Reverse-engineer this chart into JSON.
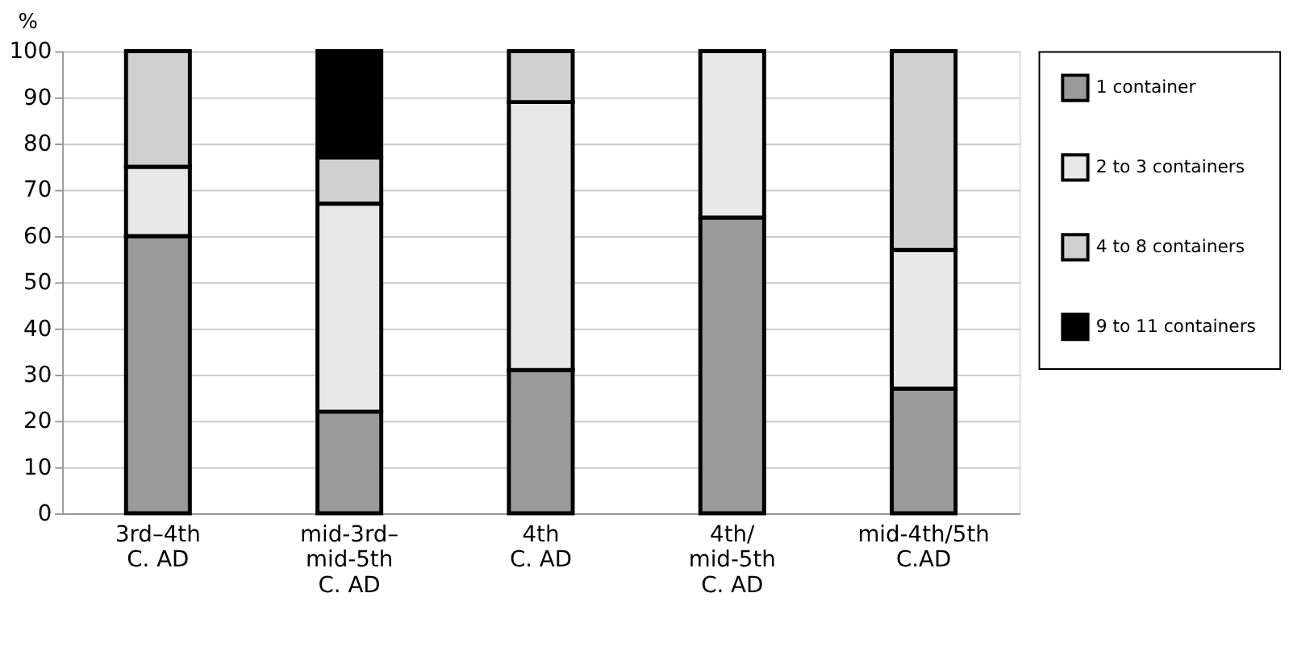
{
  "chart_data": {
    "type": "bar",
    "stacked": true,
    "ylabel": "%",
    "categories": [
      "3rd–4th\nC. AD",
      "mid-3rd–\nmid-5th\nC. AD",
      "4th\nC. AD",
      "4th/\nmid-5th\nC. AD",
      "mid-4th/5th\nC.AD"
    ],
    "series": [
      {
        "name": "1 container",
        "color": "#9a9a9a",
        "values": [
          60,
          22,
          31,
          64,
          27
        ]
      },
      {
        "name": "2 to 3 containers",
        "color": "#e8e8e8",
        "values": [
          15,
          45,
          58,
          36,
          30
        ]
      },
      {
        "name": "4 to 8 containers",
        "color": "#d0d0d0",
        "values": [
          25,
          10,
          11,
          null,
          43
        ]
      },
      {
        "name": "9 to 11 containers",
        "color": "#000000",
        "values": [
          null,
          23,
          null,
          null,
          null
        ]
      }
    ],
    "ylim": [
      0,
      100
    ],
    "yticks": [
      0,
      10,
      20,
      30,
      40,
      50,
      60,
      70,
      80,
      90,
      100
    ],
    "grid": "y",
    "legend": "right"
  }
}
